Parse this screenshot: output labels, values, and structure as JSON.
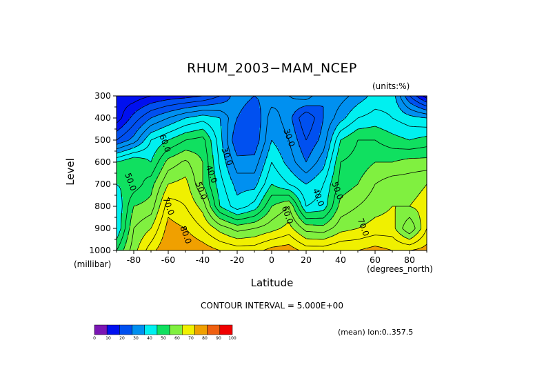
{
  "chart_data": {
    "type": "heatmap",
    "title": "RHUM_2003−MAM_NCEP",
    "units_label": "(units:%)",
    "xlabel": "Latitude",
    "x_unit_label": "(degrees_north)",
    "ylabel": "Level",
    "y_unit_label": "(millibar)",
    "x_range": [
      -90,
      90
    ],
    "y_range": [
      1000,
      300
    ],
    "x_ticks": [
      "-80",
      "-60",
      "-40",
      "-20",
      "0",
      "20",
      "40",
      "60",
      "80"
    ],
    "x_tick_values": [
      -80,
      -60,
      -40,
      -20,
      0,
      20,
      40,
      60,
      80
    ],
    "y_ticks": [
      "300",
      "400",
      "500",
      "600",
      "700",
      "800",
      "900",
      "1000"
    ],
    "y_tick_values": [
      300,
      400,
      500,
      600,
      700,
      800,
      900,
      1000
    ],
    "x_grid": [
      -90,
      -80,
      -70,
      -60,
      -50,
      -40,
      -30,
      -20,
      -10,
      0,
      10,
      20,
      30,
      40,
      50,
      60,
      70,
      80,
      90
    ],
    "y_grid": [
      300,
      400,
      500,
      600,
      700,
      800,
      900,
      1000
    ],
    "values": [
      [
        12,
        12,
        15,
        17,
        18,
        20,
        25,
        33,
        30,
        32,
        35,
        38,
        30,
        33,
        37,
        42,
        43,
        25,
        12
      ],
      [
        12,
        22,
        30,
        35,
        40,
        43,
        40,
        30,
        25,
        38,
        32,
        20,
        30,
        38,
        45,
        47,
        45,
        42,
        40
      ],
      [
        25,
        32,
        45,
        50,
        55,
        57,
        42,
        25,
        26,
        40,
        35,
        25,
        32,
        50,
        55,
        55,
        52,
        50,
        52
      ],
      [
        50,
        55,
        50,
        62,
        66,
        60,
        44,
        32,
        32,
        45,
        38,
        30,
        38,
        55,
        57,
        60,
        60,
        62,
        62
      ],
      [
        50,
        52,
        58,
        70,
        72,
        60,
        47,
        38,
        38,
        50,
        45,
        40,
        45,
        57,
        60,
        65,
        68,
        68,
        70
      ],
      [
        45,
        60,
        62,
        78,
        75,
        68,
        50,
        42,
        47,
        60,
        65,
        45,
        47,
        62,
        65,
        68,
        70,
        70,
        72
      ],
      [
        45,
        65,
        70,
        82,
        80,
        75,
        68,
        63,
        65,
        68,
        72,
        63,
        62,
        68,
        70,
        72,
        72,
        60,
        75
      ],
      [
        55,
        68,
        78,
        85,
        85,
        83,
        80,
        78,
        78,
        82,
        83,
        78,
        78,
        80,
        80,
        82,
        80,
        80,
        82
      ]
    ],
    "contour_interval": 5,
    "contour_labels": [
      {
        "text": "50.0",
        "lat": -82,
        "lev": 690
      },
      {
        "text": "60.0",
        "lat": -62,
        "lev": 515
      },
      {
        "text": "70.0",
        "lat": -60,
        "lev": 800
      },
      {
        "text": "80.0",
        "lat": -50,
        "lev": 930
      },
      {
        "text": "50.0",
        "lat": -41,
        "lev": 730
      },
      {
        "text": "40.0",
        "lat": -35,
        "lev": 655
      },
      {
        "text": "30.0",
        "lat": -26,
        "lev": 575
      },
      {
        "text": "30.0",
        "lat": 10,
        "lev": 490
      },
      {
        "text": "60.0",
        "lat": 9,
        "lev": 840
      },
      {
        "text": "40.0",
        "lat": 27,
        "lev": 760
      },
      {
        "text": "50.0",
        "lat": 38,
        "lev": 730
      },
      {
        "text": "70.0",
        "lat": 53,
        "lev": 895
      }
    ],
    "colorbar": {
      "colors": [
        "#7b16b4",
        "#0010f0",
        "#0050f0",
        "#0090f0",
        "#00f0f0",
        "#10e060",
        "#80f040",
        "#f0f000",
        "#f0a000",
        "#f06010",
        "#f00000"
      ],
      "ticks": [
        "0",
        "10",
        "20",
        "30",
        "40",
        "50",
        "60",
        "70",
        "80",
        "90",
        "100"
      ]
    }
  },
  "labels": {
    "title": "RHUM_2003−MAM_NCEP",
    "units": "(units:%)",
    "ylabel": "Level",
    "yunit": "(millibar)",
    "xlabel": "Latitude",
    "xunit": "(degrees_north)",
    "interval": "CONTOUR INTERVAL = 5.000E+00",
    "mean": "(mean) lon:0..357.5"
  }
}
